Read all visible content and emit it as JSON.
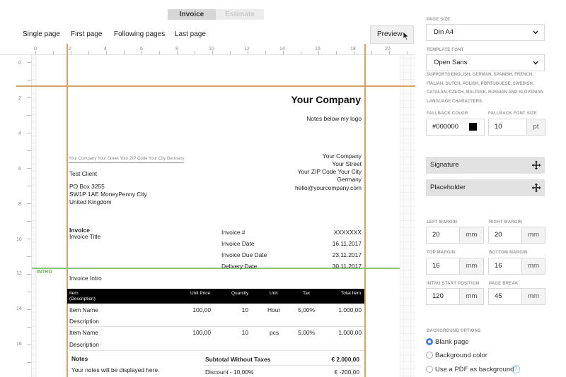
{
  "doc_types": {
    "active": "Invoice",
    "inactive": "Estimate"
  },
  "page_tabs": [
    "Single page",
    "First page",
    "Following pages",
    "Last page"
  ],
  "preview_label": "Preview",
  "ruler": {
    "h": [
      "0",
      "2",
      "4",
      "6",
      "8",
      "10",
      "12",
      "14",
      "16",
      "18",
      "20"
    ],
    "v": [
      "0",
      "2",
      "4",
      "6",
      "8",
      "10",
      "12",
      "14",
      "16"
    ]
  },
  "invoice": {
    "company_name": "Your Company",
    "logo_note": "Notes below my logo",
    "sender_line": "Your Company Your Street Your ZIP Code Your City Germany",
    "sender_address": [
      "Your Company",
      "Your Street",
      "Your ZIP Code Your City",
      "Germany",
      "hello@yourcompany.com"
    ],
    "recipient": [
      "Test Client",
      "PO Box 3255",
      "SW1P 1AE MoneyPenny City",
      "United Kingdom"
    ],
    "doc_title": "Invoice",
    "doc_subtitle": "Invoice Title",
    "meta": [
      {
        "label": "Invoice #",
        "value": "XXXXXXX"
      },
      {
        "label": "Invoice Date",
        "value": "16.11.2017"
      },
      {
        "label": "Invoice Due Date",
        "value": "23.11.2017"
      },
      {
        "label": "Delivery Date",
        "value": "30.11.2017"
      }
    ],
    "intro_tag": "INTRO",
    "intro_text": "Invoice Intro",
    "table_headers": {
      "item": "Item",
      "description": "(Description)",
      "unit_price": "Unit Price",
      "quantity": "Quantity",
      "unit": "Unit",
      "tax": "Tax",
      "total": "Total Item"
    },
    "rows": [
      {
        "name": "Item Name",
        "description": "Description",
        "unit_price": "100,00",
        "quantity": "10",
        "unit": "Hour",
        "tax": "5,00%",
        "total": "1.000,00"
      },
      {
        "name": "Item Name",
        "description": "Description",
        "unit_price": "100,00",
        "quantity": "10",
        "unit": "pcs",
        "tax": "5,00%",
        "total": "1.000,00"
      }
    ],
    "notes_title": "Notes",
    "notes_text": "Your notes will be displayed here.",
    "subtotal_label": "Subtotal Without Taxes",
    "subtotal_value": "€ 2.000,00",
    "discount_label": "Discount - 10,00%",
    "discount_value": "€ -200,00"
  },
  "settings": {
    "page_size_label": "PAGE SIZE",
    "page_size_value": "Din A4",
    "template_font_label": "TEMPLATE FONT",
    "template_font_value": "Open Sans",
    "font_support_note": "SUPPORTS ENGLISH, GERMAN, SPANISH, FRENCH, ITALIAN, DUTCH, POLISH, PORTUGUESE, SWEDISH, CATALAN, CZECH, MALTESE, RUSSIAN AND SLOVENIAN LANGUAGE CHARACTERS.",
    "fallback_color_label": "FALLBACK COLOR",
    "fallback_color_value": "#000000",
    "fallback_font_size_label": "FALLBACK FONT SIZE",
    "fallback_font_size_value": "10",
    "fallback_font_size_unit": "pt",
    "signature_label": "Signature",
    "placeholder_label": "Placeholder",
    "left_margin_label": "LEFT MARGIN",
    "left_margin_value": "20",
    "right_margin_label": "RIGHT MARGIN",
    "right_margin_value": "20",
    "top_margin_label": "TOP MARGIN",
    "top_margin_value": "16",
    "bottom_margin_label": "BOTTOM MARGIN",
    "bottom_margin_value": "16",
    "intro_start_label": "INTRO START POSITION",
    "intro_start_value": "120",
    "page_break_label": "PAGE BREAK",
    "page_break_value": "45",
    "unit_mm": "mm",
    "background_options_label": "BACKGROUND OPTIONS",
    "background_options": [
      "Blank page",
      "Background color",
      "Use a PDF as background"
    ],
    "background_selected": "Blank page",
    "help_glyph": "?"
  },
  "colors": {
    "guide": "#d9a067",
    "intro_guide": "#8fc37f",
    "radio_accent": "#4a7fd1"
  }
}
